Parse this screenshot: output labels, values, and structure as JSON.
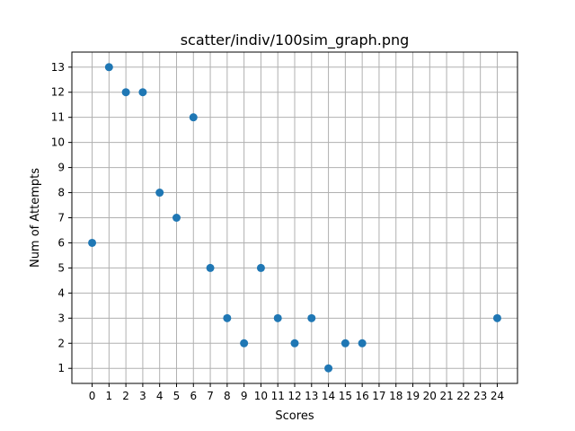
{
  "chart_data": {
    "type": "scatter",
    "title": "scatter/indiv/100sim_graph.png",
    "xlabel": "Scores",
    "ylabel": "Num of Attempts",
    "x": [
      0,
      1,
      2,
      3,
      4,
      5,
      6,
      7,
      8,
      9,
      10,
      11,
      12,
      13,
      14,
      15,
      16,
      24
    ],
    "y": [
      6,
      13,
      12,
      12,
      8,
      7,
      11,
      5,
      3,
      2,
      5,
      3,
      2,
      3,
      1,
      2,
      2,
      3
    ],
    "xticks": [
      "0",
      "1",
      "2",
      "3",
      "4",
      "5",
      "6",
      "7",
      "8",
      "9",
      "10",
      "11",
      "12",
      "13",
      "14",
      "15",
      "16",
      "17",
      "18",
      "19",
      "20",
      "21",
      "22",
      "23",
      "24"
    ],
    "yticks": [
      "1",
      "2",
      "3",
      "4",
      "5",
      "6",
      "7",
      "8",
      "9",
      "10",
      "11",
      "12",
      "13"
    ],
    "xlim": [
      -1.2,
      25.2
    ],
    "ylim": [
      0.4,
      13.6
    ],
    "grid": true,
    "marker_color": "#1f77b4"
  }
}
